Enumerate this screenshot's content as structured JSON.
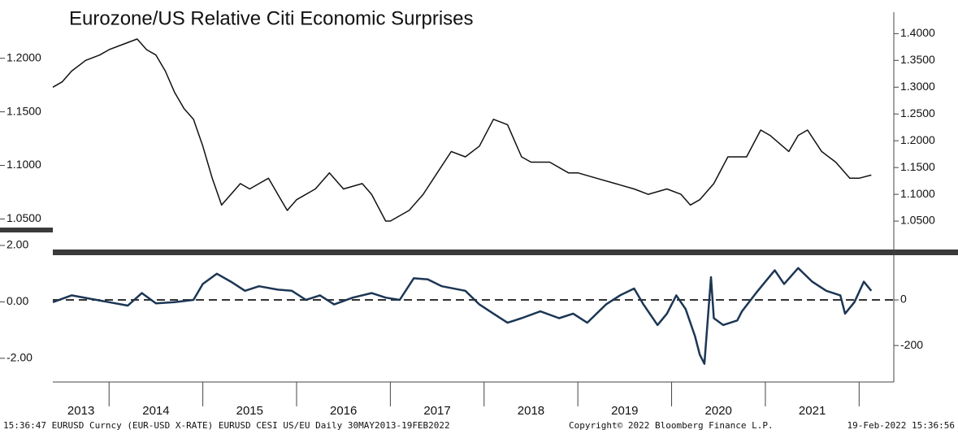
{
  "chart_data": [
    {
      "type": "line",
      "title": "Eurozone/US Relative Citi Economic Surprises",
      "xlim": [
        2013.4,
        2022.37
      ],
      "ylim": [
        1.023,
        1.243
      ],
      "yticks": [
        {
          "value": 1.05,
          "label": "1.0500"
        },
        {
          "value": 1.1,
          "label": "1.1000"
        },
        {
          "value": 1.15,
          "label": "1.1500"
        },
        {
          "value": 1.2,
          "label": "1.2000"
        }
      ],
      "y2lim": [
        1.0,
        1.44
      ],
      "y2ticks": [
        {
          "value": 1.05,
          "label": "1.0500"
        },
        {
          "value": 1.1,
          "label": "1.1000"
        },
        {
          "value": 1.15,
          "label": "1.1500"
        },
        {
          "value": 1.2,
          "label": "1.2000"
        },
        {
          "value": 1.25,
          "label": "1.2500"
        },
        {
          "value": 1.3,
          "label": "1.3000"
        },
        {
          "value": 1.35,
          "label": "1.3500"
        },
        {
          "value": 1.4,
          "label": "1.4000"
        }
      ],
      "x": [
        2013.4,
        2013.5,
        2013.6,
        2013.75,
        2013.9,
        2014.0,
        2014.15,
        2014.3,
        2014.4,
        2014.5,
        2014.6,
        2014.7,
        2014.8,
        2014.9,
        2015.0,
        2015.1,
        2015.2,
        2015.3,
        2015.4,
        2015.5,
        2015.6,
        2015.7,
        2015.8,
        2015.9,
        2016.0,
        2016.2,
        2016.35,
        2016.5,
        2016.7,
        2016.8,
        2016.95,
        2017.0,
        2017.2,
        2017.35,
        2017.5,
        2017.65,
        2017.8,
        2017.95,
        2018.1,
        2018.25,
        2018.4,
        2018.5,
        2018.7,
        2018.9,
        2019.0,
        2019.2,
        2019.4,
        2019.6,
        2019.75,
        2019.95,
        2020.1,
        2020.2,
        2020.3,
        2020.45,
        2020.6,
        2020.8,
        2020.95,
        2021.05,
        2021.25,
        2021.35,
        2021.45,
        2021.6,
        2021.75,
        2021.9,
        2022.0,
        2022.13
      ],
      "series": [
        {
          "color": "#111111",
          "axis": "y2",
          "values": [
            1.3,
            1.31,
            1.33,
            1.35,
            1.36,
            1.37,
            1.38,
            1.39,
            1.37,
            1.36,
            1.33,
            1.29,
            1.26,
            1.24,
            1.19,
            1.13,
            1.08,
            1.1,
            1.12,
            1.11,
            1.12,
            1.13,
            1.1,
            1.07,
            1.09,
            1.11,
            1.14,
            1.11,
            1.12,
            1.1,
            1.05,
            1.05,
            1.07,
            1.1,
            1.14,
            1.18,
            1.17,
            1.19,
            1.24,
            1.23,
            1.17,
            1.16,
            1.16,
            1.14,
            1.14,
            1.13,
            1.12,
            1.11,
            1.1,
            1.11,
            1.1,
            1.08,
            1.09,
            1.12,
            1.17,
            1.17,
            1.22,
            1.21,
            1.18,
            1.21,
            1.22,
            1.18,
            1.16,
            1.13,
            1.13,
            1.136
          ]
        }
      ]
    },
    {
      "type": "line",
      "xlim": [
        2013.4,
        2022.37
      ],
      "xticks": [
        2014,
        2015,
        2016,
        2017,
        2018,
        2019,
        2020,
        2021,
        2022
      ],
      "categories": [
        "2013",
        "2014",
        "2015",
        "2016",
        "2017",
        "2018",
        "2019",
        "2020",
        "2021"
      ],
      "ylim": [
        -2.84,
        2.0
      ],
      "yticks": [
        {
          "value": -2,
          "label": "-2.00"
        },
        {
          "value": 0,
          "label": "0.00"
        },
        {
          "value": 2,
          "label": "2.00"
        }
      ],
      "y2lim": [
        -360,
        239
      ],
      "y2ticks": [
        -200,
        0
      ],
      "x": [
        2013.4,
        2013.6,
        2013.8,
        2014.0,
        2014.2,
        2014.35,
        2014.5,
        2014.7,
        2014.9,
        2015.0,
        2015.15,
        2015.3,
        2015.45,
        2015.6,
        2015.8,
        2015.95,
        2016.1,
        2016.25,
        2016.4,
        2016.6,
        2016.8,
        2016.95,
        2017.1,
        2017.25,
        2017.4,
        2017.55,
        2017.8,
        2017.95,
        2018.1,
        2018.25,
        2018.4,
        2018.6,
        2018.8,
        2018.95,
        2019.1,
        2019.3,
        2019.45,
        2019.6,
        2019.7,
        2019.85,
        2019.95,
        2020.05,
        2020.15,
        2020.25,
        2020.3,
        2020.35,
        2020.42,
        2020.45,
        2020.55,
        2020.7,
        2020.75,
        2020.9,
        2021.0,
        2021.1,
        2021.2,
        2021.35,
        2021.5,
        2021.65,
        2021.8,
        2021.85,
        2021.95,
        2022.05,
        2022.13
      ],
      "series": [
        {
          "color": "#1c3654",
          "axis": "y2",
          "values": [
            -10,
            20,
            5,
            -10,
            -25,
            30,
            -15,
            -10,
            0,
            70,
            115,
            80,
            40,
            60,
            45,
            40,
            0,
            20,
            -20,
            10,
            30,
            10,
            0,
            95,
            90,
            60,
            40,
            -20,
            -60,
            -100,
            -80,
            -50,
            -80,
            -60,
            -100,
            -20,
            20,
            50,
            -20,
            -110,
            -60,
            20,
            -40,
            -160,
            -240,
            -280,
            100,
            -80,
            -110,
            -90,
            -50,
            30,
            80,
            130,
            70,
            140,
            80,
            40,
            20,
            -60,
            -10,
            80,
            40
          ]
        }
      ]
    }
  ],
  "footer": {
    "left": "15:36:47 EURUSD Curncy (EUR-USD X-RATE) EURUSD CESI US/EU  Daily 30MAY2013-19FEB2022",
    "middle": "Copyright© 2022 Bloomberg Finance L.P.",
    "right": "19-Feb-2022 15:36:56"
  }
}
